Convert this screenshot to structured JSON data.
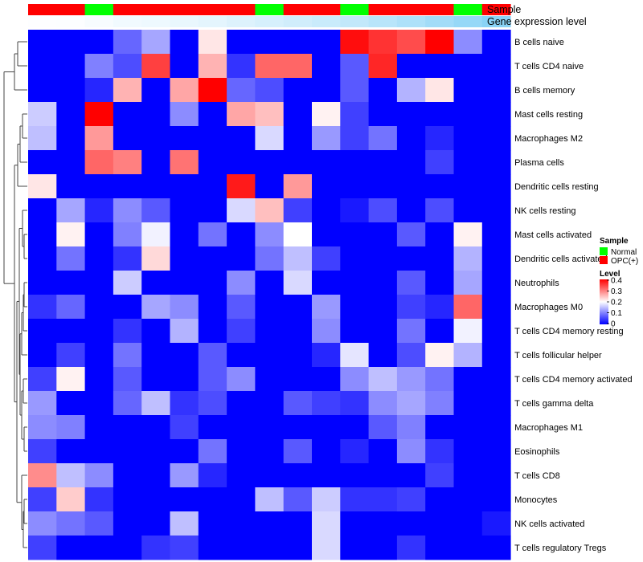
{
  "chart_data": {
    "type": "heatmap",
    "rows": [
      "B cells naive",
      "T cells CD4 naive",
      "B cells memory",
      "Mast cells resting",
      "Macrophages M2",
      "Plasma cells",
      "Dendritic cells resting",
      "NK cells resting",
      "Mast cells activated",
      "Dendritic cells activated",
      "Neutrophils",
      "Macrophages M0",
      "T cells CD4 memory resting",
      "T cells follicular helper",
      "T cells CD4 memory activated",
      "T cells gamma delta",
      "Macrophages M1",
      "Eosinophils",
      "T cells CD8",
      "Monocytes",
      "NK cells activated",
      "T cells regulatory  Tregs"
    ],
    "sample_groups": [
      "OPC(+)",
      "OPC(+)",
      "Normal",
      "OPC(+)",
      "OPC(+)",
      "OPC(+)",
      "OPC(+)",
      "OPC(+)",
      "Normal",
      "OPC(+)",
      "OPC(+)",
      "Normal",
      "OPC(+)",
      "OPC(+)",
      "OPC(+)",
      "Normal",
      "OPC(+)"
    ],
    "gene_expression_level": [
      0.01,
      0.02,
      0.05,
      0.08,
      0.1,
      0.13,
      0.16,
      0.2,
      0.24,
      0.28,
      0.32,
      0.36,
      0.42,
      0.48,
      0.55,
      0.62,
      0.7
    ],
    "values": [
      [
        0,
        0,
        0,
        0.08,
        0.13,
        0,
        0.22,
        0,
        0,
        0,
        0,
        0.39,
        0.36,
        0.34,
        0.4,
        0.11,
        0
      ],
      [
        0,
        0,
        0.1,
        0.06,
        0.35,
        0,
        0.26,
        0.04,
        0.32,
        0.32,
        0,
        0.07,
        0.37,
        0,
        0,
        0,
        0
      ],
      [
        0,
        0,
        0.03,
        0.26,
        0,
        0.27,
        0.4,
        0.08,
        0.06,
        0,
        0,
        0.07,
        0,
        0.14,
        0.22,
        0,
        0
      ],
      [
        0.16,
        0,
        0.4,
        0,
        0,
        0.11,
        0,
        0.27,
        0.25,
        0,
        0.21,
        0.05,
        0,
        0,
        0,
        0,
        0
      ],
      [
        0.15,
        0,
        0.28,
        0,
        0,
        0,
        0,
        0,
        0.17,
        0,
        0.12,
        0.05,
        0.09,
        0,
        0.03,
        0,
        0
      ],
      [
        0,
        0,
        0.32,
        0.3,
        0,
        0.31,
        0,
        0,
        0,
        0,
        0,
        0,
        0,
        0,
        0.05,
        0,
        0
      ],
      [
        0.22,
        0,
        0,
        0,
        0,
        0,
        0,
        0.38,
        0,
        0.28,
        0,
        0,
        0,
        0,
        0,
        0,
        0
      ],
      [
        0,
        0.13,
        0.03,
        0.11,
        0.07,
        0,
        0,
        0.17,
        0.25,
        0.05,
        0,
        0.02,
        0.06,
        0,
        0.06,
        0,
        0
      ],
      [
        0,
        0.21,
        0,
        0.1,
        0.19,
        0,
        0.09,
        0,
        0.11,
        0.2,
        0,
        0,
        0,
        0.07,
        0,
        0.21,
        0
      ],
      [
        0,
        0.09,
        0,
        0.04,
        0.23,
        0,
        0,
        0,
        0.09,
        0.15,
        0.05,
        0,
        0,
        0,
        0,
        0.14,
        0
      ],
      [
        0,
        0,
        0,
        0.16,
        0,
        0,
        0,
        0.11,
        0,
        0.17,
        0,
        0,
        0,
        0.07,
        0,
        0.13,
        0
      ],
      [
        0.04,
        0.08,
        0,
        0,
        0.13,
        0.11,
        0,
        0.07,
        0,
        0,
        0.12,
        0,
        0,
        0.05,
        0.03,
        0.32,
        0
      ],
      [
        0,
        0,
        0,
        0.04,
        0,
        0.14,
        0,
        0.05,
        0,
        0,
        0.11,
        0,
        0,
        0.09,
        0,
        0.19,
        0
      ],
      [
        0,
        0.05,
        0,
        0.09,
        0,
        0,
        0.07,
        0,
        0,
        0,
        0.03,
        0.18,
        0,
        0.06,
        0.21,
        0.14,
        0
      ],
      [
        0.05,
        0.21,
        0,
        0.07,
        0,
        0,
        0.07,
        0.11,
        0,
        0,
        0,
        0.11,
        0.15,
        0.12,
        0.09,
        0,
        0
      ],
      [
        0.12,
        0,
        0,
        0.08,
        0.15,
        0.04,
        0.06,
        0,
        0,
        0.07,
        0.05,
        0.04,
        0.11,
        0.13,
        0.1,
        0,
        0
      ],
      [
        0.11,
        0.1,
        0,
        0,
        0,
        0.05,
        0,
        0,
        0,
        0,
        0,
        0,
        0.07,
        0.1,
        0,
        0,
        0
      ],
      [
        0.05,
        0,
        0,
        0,
        0,
        0,
        0.09,
        0,
        0,
        0.07,
        0,
        0.03,
        0,
        0.11,
        0.04,
        0,
        0
      ],
      [
        0.29,
        0.15,
        0.11,
        0,
        0,
        0.12,
        0.03,
        0,
        0,
        0,
        0,
        0,
        0,
        0,
        0.05,
        0,
        0
      ],
      [
        0.05,
        0.24,
        0.04,
        0,
        0,
        0,
        0,
        0,
        0.15,
        0.07,
        0.16,
        0.04,
        0.04,
        0.05,
        0,
        0,
        0
      ],
      [
        0.11,
        0.09,
        0.07,
        0,
        0,
        0.15,
        0,
        0,
        0,
        0,
        0.17,
        0,
        0,
        0,
        0,
        0,
        0.02
      ],
      [
        0.05,
        0,
        0,
        0,
        0.04,
        0.05,
        0,
        0,
        0,
        0,
        0.17,
        0,
        0,
        0.04,
        0,
        0,
        0
      ]
    ],
    "scale": {
      "min": 0,
      "max": 0.4,
      "mid": 0.2,
      "low_color": "#0000ff",
      "mid_color": "#ffffff",
      "high_color": "#ff0000"
    },
    "legend": {
      "sample": {
        "title": "Sample",
        "items": [
          {
            "label": "Normal",
            "color": "#00ff00"
          },
          {
            "label": "OPC(+)",
            "color": "#ff0000"
          }
        ]
      },
      "level": {
        "title": "Level",
        "ticks": [
          "0.4",
          "0.3",
          "0.2",
          "0.1",
          "0"
        ],
        "tick_values": [
          0.4,
          0.3,
          0.2,
          0.1,
          0
        ]
      }
    },
    "annotation_labels": {
      "sample": "Sample",
      "gene_expression": "Gene expression level"
    },
    "gene_expression_colors": {
      "low": "#ffffff",
      "high": "#56c0f2"
    },
    "row_dendrogram": true,
    "legend_position": "right"
  }
}
